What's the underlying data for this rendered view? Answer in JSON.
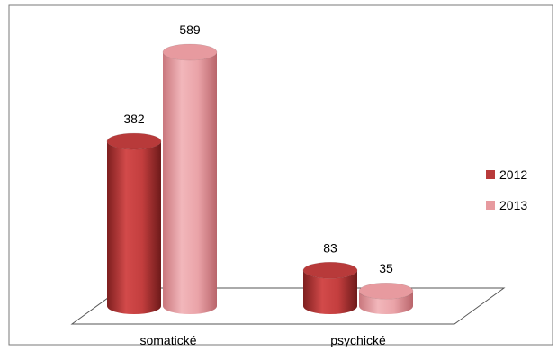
{
  "chart_data": {
    "type": "bar",
    "style": "3d-cylinder",
    "categories": [
      "somatické",
      "psychické"
    ],
    "series": [
      {
        "name": "2012",
        "values": [
          382,
          83
        ],
        "color": "#b83a3a"
      },
      {
        "name": "2013",
        "values": [
          589,
          35
        ],
        "color": "#e79a9f"
      }
    ],
    "title": "",
    "xlabel": "",
    "ylabel": "",
    "ylim": [
      0,
      589
    ],
    "grid": false,
    "legend_position": "right"
  }
}
